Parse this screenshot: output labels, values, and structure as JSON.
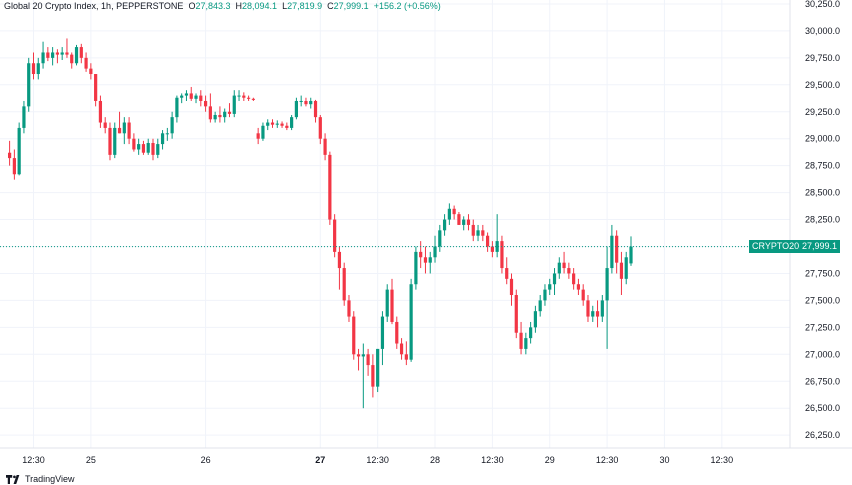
{
  "legend": {
    "name": "Global 20 Crypto Index, 1h, PEPPERSTONE",
    "o_label": "O",
    "o": "27,843.3",
    "h_label": "H",
    "h": "28,094.1",
    "l_label": "L",
    "l": "27,819.9",
    "c_label": "C",
    "c": "27,999.1",
    "change": "+156.2 (+0.56%)"
  },
  "price_tag": {
    "symbol": "CRYPTO20",
    "price": "27,999.1"
  },
  "branding": {
    "logo_text": "TradingView"
  },
  "colors": {
    "up": "#089981",
    "down": "#f23645",
    "grid": "#f0f3fa",
    "axis_text": "#131722",
    "tag": "#089981"
  },
  "chart_data": {
    "type": "candlestick",
    "title": "Global 20 Crypto Index, 1h, PEPPERSTONE",
    "xlabel": "",
    "ylabel": "",
    "ylim": [
      26050,
      30300
    ],
    "y_ticks": [
      26250,
      26500,
      26750,
      27000,
      27250,
      27500,
      27750,
      28000,
      28250,
      28500,
      28750,
      29000,
      29250,
      29500,
      29750,
      30000,
      30250
    ],
    "y_tick_labels": [
      "26,250.0",
      "26,500.0",
      "26,750.0",
      "27,000.0",
      "27,250.0",
      "27,500.0",
      "27,750.0",
      "28,000.0",
      "28,250.0",
      "28,500.0",
      "28,750.0",
      "29,000.0",
      "29,250.0",
      "29,500.0",
      "29,750.0",
      "30,000.0",
      "30,250.0"
    ],
    "x_ticks": [
      {
        "label": "12:30",
        "index": 5,
        "bold": false
      },
      {
        "label": "25",
        "index": 17,
        "bold": false
      },
      {
        "label": "26",
        "index": 41,
        "bold": false
      },
      {
        "label": "27",
        "index": 65,
        "bold": true
      },
      {
        "label": "12:30",
        "index": 77,
        "bold": false
      },
      {
        "label": "28",
        "index": 89,
        "bold": false
      },
      {
        "label": "12:30",
        "index": 101,
        "bold": false
      },
      {
        "label": "29",
        "index": 113,
        "bold": false
      },
      {
        "label": "12:30",
        "index": 125,
        "bold": false
      },
      {
        "label": "30",
        "index": 137,
        "bold": false
      },
      {
        "label": "12:30",
        "index": 149,
        "bold": false
      }
    ],
    "current_price": 27999.1,
    "grid": true,
    "candles": [
      [
        28870,
        28980,
        28750,
        28820
      ],
      [
        28820,
        28900,
        28620,
        28670
      ],
      [
        28670,
        29150,
        28660,
        29100
      ],
      [
        29100,
        29350,
        29050,
        29300
      ],
      [
        29300,
        29750,
        29250,
        29700
      ],
      [
        29700,
        29800,
        29550,
        29600
      ],
      [
        29600,
        29750,
        29550,
        29700
      ],
      [
        29700,
        29900,
        29650,
        29800
      ],
      [
        29800,
        29850,
        29720,
        29750
      ],
      [
        29750,
        29850,
        29680,
        29800
      ],
      [
        29800,
        29830,
        29700,
        29780
      ],
      [
        29780,
        29850,
        29730,
        29800
      ],
      [
        29800,
        29930,
        29750,
        29780
      ],
      [
        29780,
        29800,
        29650,
        29700
      ],
      [
        29700,
        29870,
        29680,
        29850
      ],
      [
        29850,
        29880,
        29700,
        29750
      ],
      [
        29750,
        29800,
        29620,
        29650
      ],
      [
        29650,
        29700,
        29550,
        29600
      ],
      [
        29600,
        29600,
        29300,
        29350
      ],
      [
        29350,
        29400,
        29100,
        29150
      ],
      [
        29150,
        29200,
        29050,
        29100
      ],
      [
        29100,
        29150,
        28800,
        28850
      ],
      [
        28850,
        29150,
        28820,
        29100
      ],
      [
        29100,
        29250,
        29050,
        29050
      ],
      [
        29050,
        29200,
        28950,
        29150
      ],
      [
        29150,
        29200,
        28950,
        29000
      ],
      [
        29000,
        29050,
        28880,
        28900
      ],
      [
        28900,
        29000,
        28850,
        28950
      ],
      [
        28950,
        28980,
        28850,
        28870
      ],
      [
        28870,
        29000,
        28850,
        28960
      ],
      [
        28960,
        29000,
        28800,
        28850
      ],
      [
        28850,
        29000,
        28820,
        28950
      ],
      [
        28950,
        29080,
        28900,
        29050
      ],
      [
        29050,
        29100,
        28980,
        29050
      ],
      [
        29050,
        29250,
        29000,
        29200
      ],
      [
        29200,
        29400,
        29150,
        29380
      ],
      [
        29380,
        29420,
        29330,
        29400
      ],
      [
        29400,
        29450,
        29350,
        29420
      ],
      [
        29420,
        29480,
        29350,
        29370
      ],
      [
        29370,
        29420,
        29330,
        29400
      ],
      [
        29400,
        29450,
        29300,
        29350
      ],
      [
        29350,
        29400,
        29250,
        29300
      ],
      [
        29300,
        29420,
        29150,
        29180
      ],
      [
        29180,
        29250,
        29150,
        29220
      ],
      [
        29220,
        29300,
        29150,
        29200
      ],
      [
        29200,
        29280,
        29150,
        29250
      ],
      [
        29250,
        29330,
        29200,
        29230
      ],
      [
        29230,
        29450,
        29200,
        29400
      ],
      [
        29400,
        29450,
        29350,
        29400
      ],
      [
        29400,
        29430,
        29350,
        29380
      ],
      [
        29380,
        29400,
        29350,
        29370
      ],
      [
        29370,
        29380,
        29350,
        29360
      ],
      [
        29050,
        29100,
        28950,
        29000
      ],
      [
        29000,
        29150,
        28980,
        29120
      ],
      [
        29120,
        29180,
        29080,
        29150
      ],
      [
        29150,
        29180,
        29100,
        29130
      ],
      [
        29130,
        29170,
        29100,
        29140
      ],
      [
        29140,
        29160,
        29100,
        29120
      ],
      [
        29120,
        29150,
        29080,
        29100
      ],
      [
        29100,
        29220,
        29080,
        29200
      ],
      [
        29200,
        29380,
        29180,
        29350
      ],
      [
        29350,
        29400,
        29300,
        29350
      ],
      [
        29350,
        29380,
        29300,
        29320
      ],
      [
        29320,
        29380,
        29280,
        29350
      ],
      [
        29350,
        29360,
        29150,
        29200
      ],
      [
        29200,
        29220,
        28950,
        29000
      ],
      [
        29000,
        29050,
        28800,
        28850
      ],
      [
        28850,
        28880,
        28200,
        28250
      ],
      [
        28250,
        28300,
        27900,
        27950
      ],
      [
        27950,
        28000,
        27600,
        27800
      ],
      [
        27800,
        27850,
        27450,
        27500
      ],
      [
        27500,
        27550,
        27300,
        27350
      ],
      [
        27350,
        27400,
        26950,
        27000
      ],
      [
        27000,
        27050,
        26850,
        26980
      ],
      [
        26980,
        27100,
        26500,
        27000
      ],
      [
        27000,
        27050,
        26800,
        26900
      ],
      [
        26900,
        27000,
        26600,
        26700
      ],
      [
        26700,
        27050,
        26650,
        27050
      ],
      [
        27050,
        27400,
        26900,
        27350
      ],
      [
        27350,
        27650,
        27300,
        27600
      ],
      [
        27600,
        27700,
        27280,
        27300
      ],
      [
        27300,
        27350,
        27050,
        27100
      ],
      [
        27100,
        27150,
        26950,
        27000
      ],
      [
        27000,
        27120,
        26900,
        26950
      ],
      [
        26950,
        27700,
        26930,
        27650
      ],
      [
        27650,
        28000,
        27600,
        27950
      ],
      [
        27950,
        28050,
        27800,
        27900
      ],
      [
        27900,
        28000,
        27750,
        27850
      ],
      [
        27850,
        27950,
        27750,
        27900
      ],
      [
        27900,
        28100,
        27850,
        28000
      ],
      [
        28000,
        28200,
        27950,
        28150
      ],
      [
        28150,
        28300,
        28100,
        28250
      ],
      [
        28250,
        28400,
        28200,
        28350
      ],
      [
        28350,
        28380,
        28250,
        28300
      ],
      [
        28300,
        28320,
        28200,
        28200
      ],
      [
        28200,
        28280,
        28150,
        28250
      ],
      [
        28250,
        28300,
        28150,
        28200
      ],
      [
        28200,
        28250,
        28050,
        28100
      ],
      [
        28100,
        28200,
        28050,
        28150
      ],
      [
        28150,
        28200,
        28050,
        28100
      ],
      [
        28100,
        28130,
        27950,
        28000
      ],
      [
        28000,
        28050,
        27900,
        27950
      ],
      [
        27950,
        28300,
        27900,
        28050
      ],
      [
        28050,
        28100,
        27750,
        27800
      ],
      [
        27800,
        27900,
        27650,
        27700
      ],
      [
        27700,
        27750,
        27450,
        27550
      ],
      [
        27550,
        27600,
        27150,
        27200
      ],
      [
        27200,
        27300,
        27000,
        27050
      ],
      [
        27050,
        27200,
        27000,
        27150
      ],
      [
        27150,
        27300,
        27100,
        27250
      ],
      [
        27250,
        27450,
        27200,
        27400
      ],
      [
        27400,
        27550,
        27350,
        27500
      ],
      [
        27500,
        27650,
        27450,
        27600
      ],
      [
        27600,
        27700,
        27550,
        27650
      ],
      [
        27650,
        27800,
        27550,
        27750
      ],
      [
        27750,
        27900,
        27700,
        27850
      ],
      [
        27850,
        27950,
        27750,
        27800
      ],
      [
        27800,
        27850,
        27700,
        27750
      ],
      [
        27750,
        27800,
        27600,
        27650
      ],
      [
        27650,
        27700,
        27550,
        27600
      ],
      [
        27600,
        27650,
        27450,
        27500
      ],
      [
        27500,
        27550,
        27300,
        27350
      ],
      [
        27350,
        27450,
        27300,
        27400
      ],
      [
        27400,
        27500,
        27250,
        27350
      ],
      [
        27350,
        27550,
        27300,
        27500
      ],
      [
        27500,
        28000,
        27050,
        27800
      ],
      [
        27800,
        28200,
        27750,
        28100
      ],
      [
        28100,
        28150,
        27750,
        27850
      ],
      [
        27850,
        27950,
        27550,
        27700
      ],
      [
        27700,
        27950,
        27650,
        27900
      ],
      [
        27843.3,
        28094.1,
        27819.9,
        27999.1
      ]
    ]
  }
}
